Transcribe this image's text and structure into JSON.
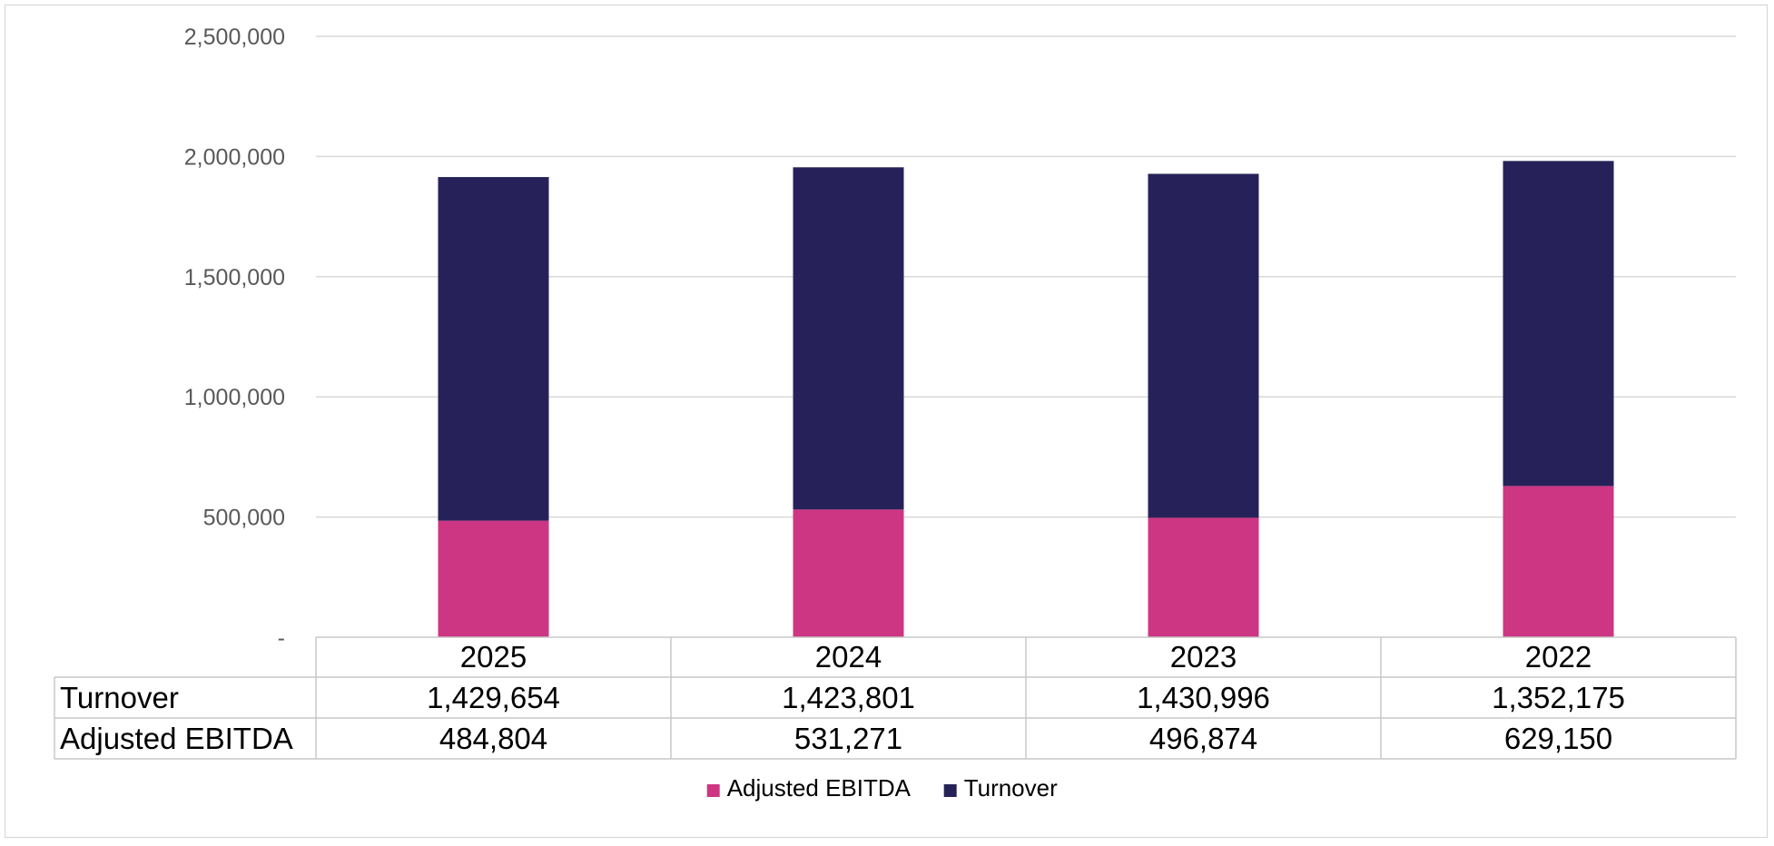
{
  "chart_data": {
    "type": "bar",
    "stacked": true,
    "categories": [
      "2025",
      "2024",
      "2023",
      "2022"
    ],
    "series": [
      {
        "name": "Adjusted EBITDA",
        "color": "#CD3683",
        "values": [
          484804,
          531271,
          496874,
          629150
        ]
      },
      {
        "name": "Turnover",
        "color": "#262259",
        "values": [
          1429654,
          1423801,
          1430996,
          1352175
        ]
      }
    ],
    "ylim": [
      0,
      2500000
    ],
    "yticks": [
      {
        "value": 0,
        "label": "-"
      },
      {
        "value": 500000,
        "label": "500,000"
      },
      {
        "value": 1000000,
        "label": "1,000,000"
      },
      {
        "value": 1500000,
        "label": "1,500,000"
      },
      {
        "value": 2000000,
        "label": "2,000,000"
      },
      {
        "value": 2500000,
        "label": "2,500,000"
      }
    ],
    "grid": true,
    "legend_position": "bottom",
    "data_table": {
      "rows": [
        {
          "label": "Turnover",
          "values": [
            "1,429,654",
            "1,423,801",
            "1,430,996",
            "1,352,175"
          ]
        },
        {
          "label": "Adjusted EBITDA",
          "values": [
            "484,804",
            "531,271",
            "496,874",
            "629,150"
          ]
        }
      ]
    }
  }
}
